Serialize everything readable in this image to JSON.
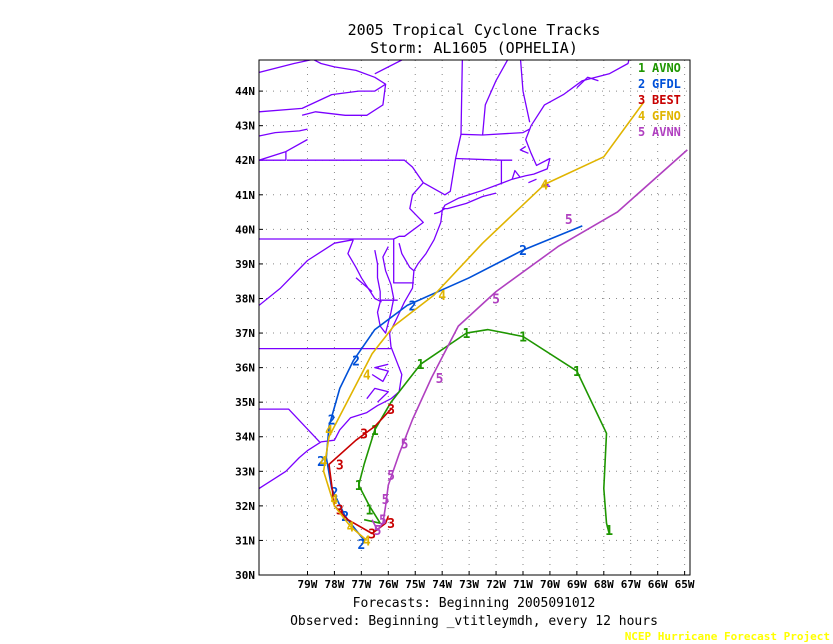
{
  "title_line1": "2005 Tropical Cyclone Tracks",
  "title_line2": "Storm: AL1605 (OPHELIA)",
  "forecasts_label": "Forecasts: Beginning 2005091012",
  "observed_label": "Observed: Beginning _vtitleymdh, every 12 hours",
  "credit": "NCEP Hurricane Forecast Project",
  "map": {
    "lon_range": [
      -80.8,
      -64.8
    ],
    "lat_range": [
      30,
      44.9
    ],
    "lat_ticks": [
      "31N",
      "32N",
      "33N",
      "34N",
      "35N",
      "36N",
      "37N",
      "38N",
      "39N",
      "40N",
      "41N",
      "42N",
      "43N",
      "44N"
    ],
    "lon_ticks": [
      "79W",
      "78W",
      "77W",
      "76W",
      "75W",
      "74W",
      "73W",
      "72W",
      "71W",
      "70W",
      "69W",
      "68W",
      "67W",
      "66W",
      "65W"
    ],
    "bottom_lat_label": "30N",
    "coast_color": "#7a00ff",
    "grid": "dotted"
  },
  "legend": [
    {
      "num": "1",
      "name": "AVNO",
      "color": "#1e9600"
    },
    {
      "num": "2",
      "name": "GFDL",
      "color": "#0050d8"
    },
    {
      "num": "3",
      "name": "BEST",
      "color": "#c80000"
    },
    {
      "num": "4",
      "name": "GFNO",
      "color": "#e0b400"
    },
    {
      "num": "5",
      "name": "AVNN",
      "color": "#b040c0"
    }
  ],
  "tracks": [
    {
      "num": "1",
      "color": "#1e9600",
      "points": [
        [
          -67.8,
          31.2
        ],
        [
          -67.9,
          31.5
        ],
        [
          -68.0,
          32.5
        ],
        [
          -67.9,
          34.1
        ],
        [
          -69.0,
          35.9
        ],
        [
          -71.0,
          36.9
        ],
        [
          -72.3,
          37.1
        ],
        [
          -73.1,
          37.0
        ],
        [
          -74.8,
          36.1
        ],
        [
          -75.9,
          35.0
        ],
        [
          -76.5,
          34.2
        ],
        [
          -76.9,
          33.2
        ],
        [
          -77.1,
          32.6
        ],
        [
          -76.7,
          32.0
        ],
        [
          -76.3,
          31.5
        ],
        [
          -76.9,
          31.6
        ]
      ],
      "markers": [
        [
          -67.8,
          31.3
        ],
        [
          -69.0,
          35.9
        ],
        [
          -71.0,
          36.9
        ],
        [
          -73.1,
          37.0
        ],
        [
          -74.8,
          36.1
        ],
        [
          -76.5,
          34.2
        ],
        [
          -77.1,
          32.6
        ],
        [
          -76.7,
          31.9
        ]
      ]
    },
    {
      "num": "2",
      "color": "#0050d8",
      "points": [
        [
          -68.8,
          40.1
        ],
        [
          -71.0,
          39.4
        ],
        [
          -73.0,
          38.6
        ],
        [
          -75.3,
          37.8
        ],
        [
          -76.5,
          37.1
        ],
        [
          -77.3,
          36.2
        ],
        [
          -77.8,
          35.4
        ],
        [
          -78.2,
          34.3
        ],
        [
          -78.3,
          33.4
        ],
        [
          -78.1,
          32.5
        ],
        [
          -77.6,
          31.7
        ],
        [
          -77.3,
          31.4
        ],
        [
          -76.9,
          31.0
        ]
      ],
      "markers": [
        [
          -71.0,
          39.4
        ],
        [
          -75.1,
          37.8
        ],
        [
          -77.2,
          36.2
        ],
        [
          -78.1,
          34.5
        ],
        [
          -78.5,
          33.3
        ],
        [
          -78.0,
          32.4
        ],
        [
          -77.6,
          31.7
        ],
        [
          -77.0,
          30.9
        ]
      ]
    },
    {
      "num": "3",
      "color": "#c80000",
      "points": [
        [
          -75.9,
          34.8
        ],
        [
          -76.5,
          34.3
        ],
        [
          -77.2,
          33.9
        ],
        [
          -78.2,
          33.2
        ],
        [
          -78.0,
          32.0
        ],
        [
          -77.5,
          31.6
        ],
        [
          -76.6,
          31.2
        ],
        [
          -76.1,
          31.5
        ],
        [
          -76.0,
          31.7
        ]
      ],
      "markers": [
        [
          -75.9,
          34.8
        ],
        [
          -76.9,
          34.1
        ],
        [
          -77.8,
          33.2
        ],
        [
          -77.8,
          31.9
        ],
        [
          -76.6,
          31.2
        ],
        [
          -75.9,
          31.5
        ]
      ]
    },
    {
      "num": "4",
      "color": "#e0b400",
      "points": [
        [
          -66.5,
          43.7
        ],
        [
          -68.0,
          42.1
        ],
        [
          -70.2,
          41.3
        ],
        [
          -72.5,
          39.6
        ],
        [
          -74.3,
          38.1
        ],
        [
          -75.8,
          37.2
        ],
        [
          -76.6,
          36.4
        ],
        [
          -77.6,
          34.9
        ],
        [
          -78.2,
          34.0
        ],
        [
          -78.4,
          33.0
        ],
        [
          -78.0,
          32.0
        ],
        [
          -77.4,
          31.4
        ],
        [
          -76.8,
          31.0
        ]
      ],
      "markers": [
        [
          -70.2,
          41.3
        ],
        [
          -74.0,
          38.1
        ],
        [
          -76.8,
          35.8
        ],
        [
          -78.2,
          34.2
        ],
        [
          -78.4,
          33.3
        ],
        [
          -78.0,
          32.2
        ],
        [
          -77.4,
          31.4
        ],
        [
          -76.8,
          31.0
        ]
      ]
    },
    {
      "num": "5",
      "color": "#b040c0",
      "points": [
        [
          -64.9,
          42.3
        ],
        [
          -67.5,
          40.5
        ],
        [
          -69.7,
          39.5
        ],
        [
          -72.0,
          38.2
        ],
        [
          -73.4,
          37.2
        ],
        [
          -74.4,
          35.7
        ],
        [
          -75.1,
          34.5
        ],
        [
          -75.6,
          33.5
        ],
        [
          -76.0,
          32.6
        ],
        [
          -76.1,
          32.0
        ],
        [
          -76.2,
          31.5
        ],
        [
          -76.4,
          31.3
        ],
        [
          -76.6,
          31.6
        ]
      ],
      "markers": [
        [
          -69.3,
          40.3
        ],
        [
          -72.0,
          38.0
        ],
        [
          -74.1,
          35.7
        ],
        [
          -75.4,
          33.8
        ],
        [
          -75.9,
          32.9
        ],
        [
          -76.1,
          32.2
        ],
        [
          -76.2,
          31.6
        ],
        [
          -76.4,
          31.3
        ]
      ]
    }
  ]
}
